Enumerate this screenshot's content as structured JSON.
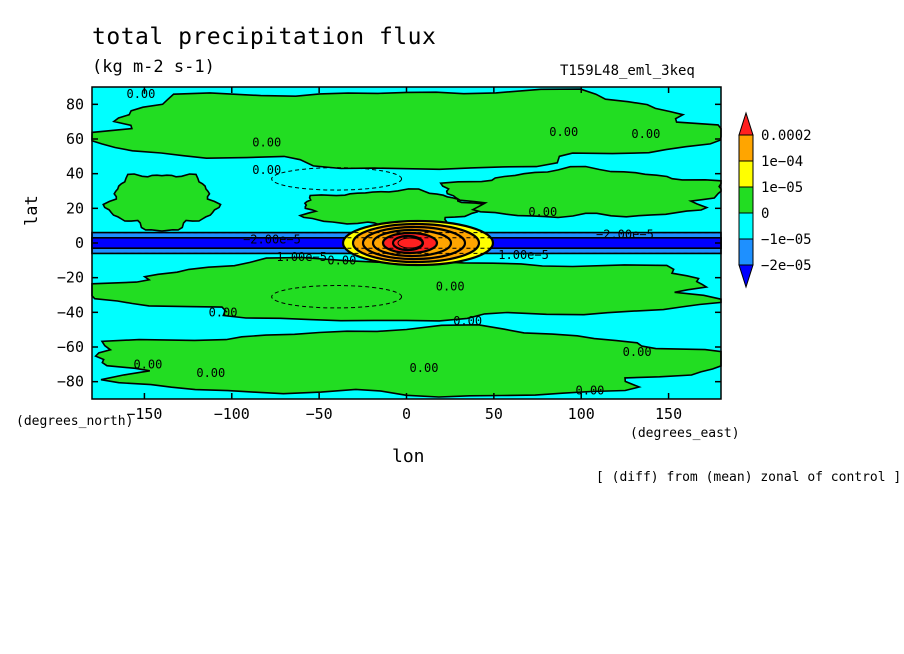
{
  "chart_data": {
    "type": "heatmap",
    "title": "total precipitation flux",
    "subtitle": "(kg m-2 s-1)",
    "run_label": "T159L48_eml_3keq",
    "xlabel": "lon",
    "ylabel": "lat",
    "x_units": "(degrees_east)",
    "y_units": "(degrees_north)",
    "footnote": "[ (diff) from (mean) zonal of control ]",
    "xlim": [
      -180,
      180
    ],
    "ylim": [
      -90,
      90
    ],
    "x_ticks": [
      "−150",
      "−100",
      "−50",
      "0",
      "50",
      "100",
      "150"
    ],
    "x_tick_values": [
      -150,
      -100,
      -50,
      0,
      50,
      100,
      150
    ],
    "y_ticks": [
      "80",
      "60",
      "40",
      "20",
      "0",
      "−20",
      "−40",
      "−60",
      "−80"
    ],
    "y_tick_values": [
      80,
      60,
      40,
      20,
      0,
      -20,
      -40,
      -60,
      -80
    ],
    "colorbar": {
      "labels": [
        "0.0002",
        "1e−04",
        "1e−05",
        "0",
        "−1e−05",
        "−2e−05"
      ],
      "colors": [
        "#ff2020",
        "#ffa500",
        "#ffff00",
        "#22dd22",
        "#00ffff",
        "#1e90ff",
        "#0000ff"
      ]
    },
    "regions": [
      {
        "level": "positive",
        "color": "#22dd22",
        "lat": [
          8,
          40
        ],
        "lon": [
          -170,
          -110
        ]
      },
      {
        "level": "positive",
        "color": "#22dd22",
        "lat": [
          10,
          30
        ],
        "lon": [
          -60,
          40
        ]
      },
      {
        "level": "positive",
        "color": "#22dd22",
        "lat": [
          15,
          42
        ],
        "lon": [
          25,
          180
        ]
      },
      {
        "level": "positive",
        "color": "#22dd22",
        "lat": [
          -44,
          -10
        ],
        "lon": [
          -180,
          180
        ]
      },
      {
        "level": "positive",
        "color": "#22dd22",
        "lat": [
          44,
          88
        ],
        "lon": [
          -180,
          180
        ]
      },
      {
        "level": "positive",
        "color": "#22dd22",
        "lat": [
          -88,
          -50
        ],
        "lon": [
          -180,
          180
        ]
      },
      {
        "level": "negative",
        "color": "#1e90ff",
        "lat": [
          -6,
          6
        ],
        "lon": [
          -180,
          180
        ]
      },
      {
        "level": "negative_strong",
        "color": "#0000ff",
        "lat": [
          -3,
          3
        ],
        "lon": [
          -180,
          180
        ]
      },
      {
        "level": "maximum",
        "color": "#ff2020",
        "lat": [
          -5,
          5
        ],
        "lon": [
          -20,
          30
        ]
      }
    ],
    "contour_labels": [
      {
        "text": "0.00",
        "lon": -152,
        "lat": 86
      },
      {
        "text": "0.00",
        "lon": -80,
        "lat": 58
      },
      {
        "text": "0.00",
        "lon": -80,
        "lat": 42
      },
      {
        "text": "0.00",
        "lon": 90,
        "lat": 64
      },
      {
        "text": "0.00",
        "lon": 137,
        "lat": 63
      },
      {
        "text": "0.00",
        "lon": 78,
        "lat": 18
      },
      {
        "text": "0.00",
        "lon": 25,
        "lat": -25
      },
      {
        "text": "0.00",
        "lon": -105,
        "lat": -40
      },
      {
        "text": "0.00",
        "lon": 35,
        "lat": -45
      },
      {
        "text": "0.00",
        "lon": -148,
        "lat": -70
      },
      {
        "text": "0.00",
        "lon": -112,
        "lat": -75
      },
      {
        "text": "0.00",
        "lon": 10,
        "lat": -72
      },
      {
        "text": "0.00",
        "lon": 132,
        "lat": -63
      },
      {
        "text": "0.00",
        "lon": 105,
        "lat": -85
      },
      {
        "text": "0.00",
        "lon": -37,
        "lat": -10
      },
      {
        "text": "−2.00e−5",
        "lon": -77,
        "lat": 2
      },
      {
        "text": "−2.00e−5",
        "lon": 125,
        "lat": 5
      },
      {
        "text": "1.00e−5",
        "lon": -60,
        "lat": -8
      },
      {
        "text": "1.00e−5",
        "lon": 67,
        "lat": -7
      }
    ]
  }
}
